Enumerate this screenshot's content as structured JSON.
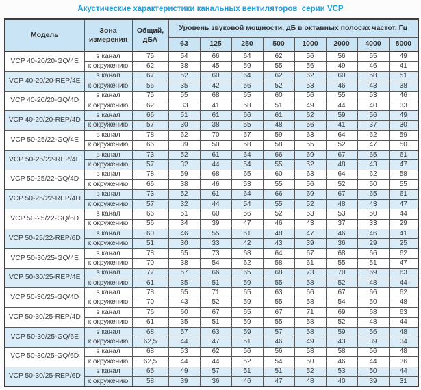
{
  "title": "Акустические характеристики канальных вентиляторов  серии VCP",
  "table": {
    "columns": {
      "model": "Модель",
      "zone": "Зона измерения",
      "overall": "Общий, дБА",
      "spl": "Уровень звуковой мощности, дБ в октавных полосах частот, Гц",
      "frequencies": [
        "63",
        "125",
        "250",
        "500",
        "1000",
        "2000",
        "4000",
        "8000"
      ]
    },
    "groups": [
      {
        "model": "VCP 40-20/20-GQ/4E",
        "shaded": false,
        "rows": [
          {
            "zone": "в канал",
            "overall": "75",
            "values": [
              "54",
              "66",
              "64",
              "62",
              "56",
              "56",
              "55",
              "49"
            ]
          },
          {
            "zone": "к окружению",
            "overall": "62",
            "values": [
              "38",
              "45",
              "59",
              "55",
              "56",
              "49",
              "46",
              "41"
            ]
          }
        ]
      },
      {
        "model": "VCP 40-20/20-REP/4E",
        "shaded": true,
        "rows": [
          {
            "zone": "в канал",
            "overall": "67",
            "values": [
              "52",
              "60",
              "64",
              "62",
              "62",
              "60",
              "58",
              "51"
            ]
          },
          {
            "zone": "к окружению",
            "overall": "56",
            "values": [
              "35",
              "42",
              "56",
              "52",
              "53",
              "46",
              "43",
              "38"
            ]
          }
        ]
      },
      {
        "model": "VCP 40-20/20-GQ/4D",
        "shaded": false,
        "rows": [
          {
            "zone": "в канал",
            "overall": "75",
            "values": [
              "55",
              "68",
              "65",
              "60",
              "56",
              "55",
              "53",
              "46"
            ]
          },
          {
            "zone": "к окружению",
            "overall": "62",
            "values": [
              "33",
              "41",
              "58",
              "51",
              "49",
              "44",
              "40",
              "33"
            ]
          }
        ]
      },
      {
        "model": "VCP 40-20/20-REP/4D",
        "shaded": true,
        "rows": [
          {
            "zone": "в канал",
            "overall": "66",
            "values": [
              "51",
              "61",
              "66",
              "61",
              "62",
              "59",
              "56",
              "49"
            ]
          },
          {
            "zone": "к окружению",
            "overall": "57",
            "values": [
              "30",
              "38",
              "55",
              "48",
              "56",
              "41",
              "37",
              "30"
            ]
          }
        ]
      },
      {
        "model": "VCP 50-25/22-GQ/4E",
        "shaded": false,
        "rows": [
          {
            "zone": "в канал",
            "overall": "78",
            "values": [
              "62",
              "70",
              "67",
              "59",
              "63",
              "64",
              "62",
              "59"
            ]
          },
          {
            "zone": "к окружению",
            "overall": "66",
            "values": [
              "39",
              "50",
              "58",
              "58",
              "55",
              "52",
              "47",
              "50"
            ]
          }
        ]
      },
      {
        "model": "VCP 50-25/22-REP/4E",
        "shaded": true,
        "rows": [
          {
            "zone": "в канал",
            "overall": "73",
            "values": [
              "52",
              "61",
              "64",
              "66",
              "69",
              "67",
              "65",
              "61"
            ]
          },
          {
            "zone": "к окружению",
            "overall": "57",
            "values": [
              "32",
              "44",
              "54",
              "55",
              "52",
              "48",
              "43",
              "47"
            ]
          }
        ]
      },
      {
        "model": "VCP 50-25/22-GQ/4D",
        "shaded": false,
        "rows": [
          {
            "zone": "в канал",
            "overall": "78",
            "values": [
              "59",
              "68",
              "65",
              "60",
              "63",
              "64",
              "62",
              "58"
            ]
          },
          {
            "zone": "к окружению",
            "overall": "66",
            "values": [
              "38",
              "46",
              "53",
              "55",
              "56",
              "52",
              "50",
              "55"
            ]
          }
        ]
      },
      {
        "model": "VCP 50-25/22-REP/4D",
        "shaded": true,
        "rows": [
          {
            "zone": "в канал",
            "overall": "73",
            "values": [
              "52",
              "61",
              "64",
              "66",
              "69",
              "67",
              "65",
              "61"
            ]
          },
          {
            "zone": "к окружению",
            "overall": "57",
            "values": [
              "32",
              "44",
              "54",
              "55",
              "52",
              "48",
              "43",
              "47"
            ]
          }
        ]
      },
      {
        "model": "VCP 50-25/22-GQ/6D",
        "shaded": false,
        "rows": [
          {
            "zone": "в канал",
            "overall": "66",
            "values": [
              "51",
              "60",
              "56",
              "52",
              "53",
              "53",
              "50",
              "44"
            ]
          },
          {
            "zone": "к окружению",
            "overall": "56",
            "values": [
              "34",
              "39",
              "47",
              "46",
              "43",
              "37",
              "33",
              "29"
            ]
          }
        ]
      },
      {
        "model": "VCP 50-25/22-REP/6D",
        "shaded": true,
        "rows": [
          {
            "zone": "в канал",
            "overall": "60",
            "values": [
              "46",
              "55",
              "51",
              "48",
              "47",
              "46",
              "46",
              "41"
            ]
          },
          {
            "zone": "к окружению",
            "overall": "51",
            "values": [
              "30",
              "33",
              "42",
              "43",
              "39",
              "36",
              "29",
              "25"
            ]
          }
        ]
      },
      {
        "model": "VCP 50-30/25-GQ/4E",
        "shaded": false,
        "rows": [
          {
            "zone": "в канал",
            "overall": "78",
            "values": [
              "65",
              "73",
              "68",
              "64",
              "67",
              "68",
              "66",
              "62"
            ]
          },
          {
            "zone": "к окружению",
            "overall": "70",
            "values": [
              "38",
              "54",
              "62",
              "58",
              "61",
              "55",
              "51",
              "47"
            ]
          }
        ]
      },
      {
        "model": "VCP 50-30/25-REP/4E",
        "shaded": true,
        "rows": [
          {
            "zone": "в канал",
            "overall": "77",
            "values": [
              "57",
              "66",
              "65",
              "68",
              "73",
              "70",
              "69",
              "63"
            ]
          },
          {
            "zone": "к окружению",
            "overall": "61",
            "values": [
              "35",
              "51",
              "59",
              "55",
              "58",
              "52",
              "48",
              "44"
            ]
          }
        ]
      },
      {
        "model": "VCP 50-30/25-GQ/4D",
        "shaded": false,
        "rows": [
          {
            "zone": "в канал",
            "overall": "78",
            "values": [
              "65",
              "71",
              "65",
              "63",
              "66",
              "67",
              "66",
              "62"
            ]
          },
          {
            "zone": "к окружению",
            "overall": "70",
            "values": [
              "43",
              "52",
              "59",
              "55",
              "58",
              "54",
              "50",
              "48"
            ]
          }
        ]
      },
      {
        "model": "VCP 50-30/25-REP/4D",
        "shaded": false,
        "rows": [
          {
            "zone": "в канал",
            "overall": "76",
            "values": [
              "60",
              "67",
              "65",
              "67",
              "71",
              "69",
              "68",
              "63"
            ]
          },
          {
            "zone": "к окружению",
            "overall": "61",
            "values": [
              "35",
              "51",
              "59",
              "55",
              "58",
              "52",
              "48",
              "44"
            ]
          }
        ]
      },
      {
        "model": "VCP 50-30/25-GQ/6E",
        "shaded": true,
        "rows": [
          {
            "zone": "в канал",
            "overall": "68",
            "values": [
              "57",
              "63",
              "59",
              "57",
              "58",
              "59",
              "56",
              "48"
            ]
          },
          {
            "zone": "к окружению",
            "overall": "62,5",
            "values": [
              "44",
              "47",
              "51",
              "46",
              "49",
              "43",
              "39",
              "34"
            ]
          }
        ]
      },
      {
        "model": "VCP 50-30/25-GQ/6D",
        "shaded": false,
        "rows": [
          {
            "zone": "в канал",
            "overall": "68",
            "values": [
              "53",
              "62",
              "56",
              "56",
              "58",
              "58",
              "56",
              "48"
            ]
          },
          {
            "zone": "к окружению",
            "overall": "62,5",
            "values": [
              "44",
              "44",
              "52",
              "54",
              "50",
              "46",
              "44",
              "36"
            ]
          }
        ]
      },
      {
        "model": "VCP 50-30/25-REP/6D",
        "shaded": true,
        "rows": [
          {
            "zone": "в канал",
            "overall": "65",
            "values": [
              "49",
              "57",
              "51",
              "51",
              "52",
              "53",
              "50",
              "44"
            ]
          },
          {
            "zone": "к окружению",
            "overall": "58",
            "values": [
              "39",
              "36",
              "46",
              "47",
              "48",
              "40",
              "39",
              "31"
            ]
          }
        ]
      }
    ]
  },
  "colors": {
    "title_text": "#1d9fda",
    "header_bg": "#c9e5f5",
    "shaded_row_bg": "#d9ecf8",
    "border": "#5a5a5a"
  }
}
